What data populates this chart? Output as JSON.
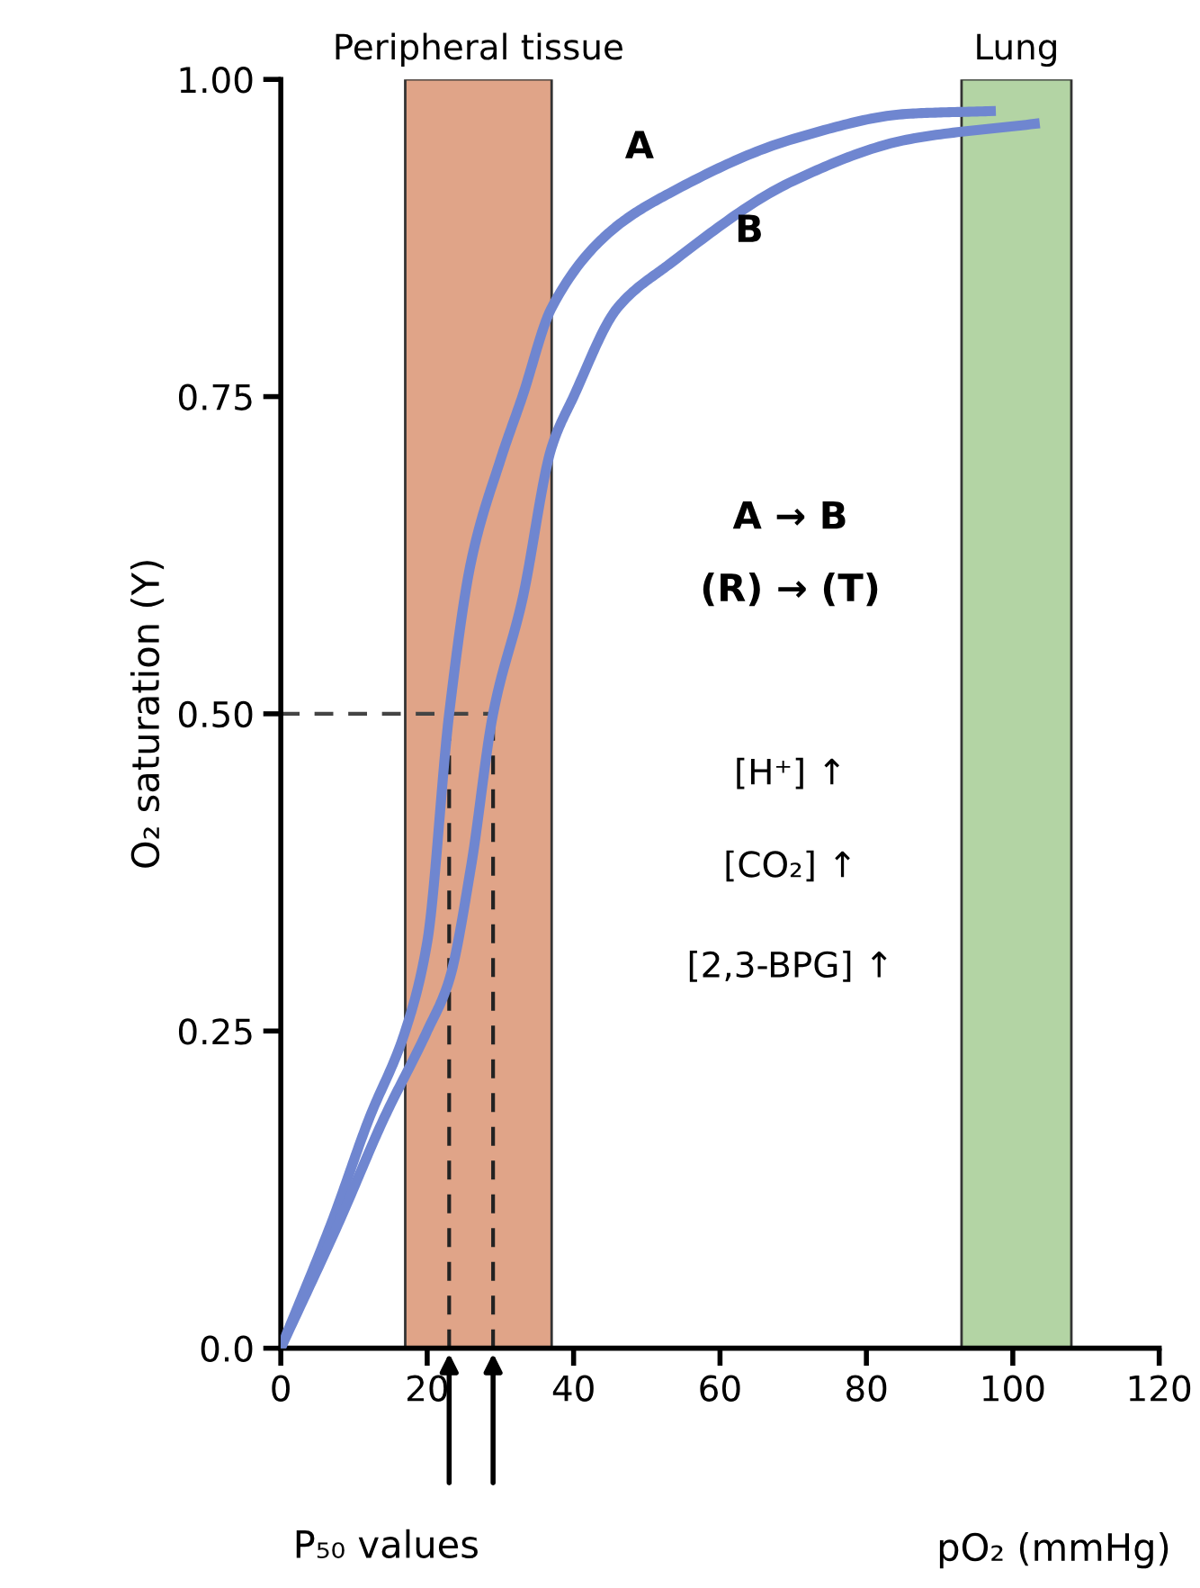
{
  "chart_data": {
    "type": "line",
    "xlabel": "pO₂ (mmHg)",
    "ylabel": "O₂ saturation (Y)",
    "xlim": [
      0,
      120
    ],
    "xticks": [
      0,
      20,
      40,
      60,
      80,
      100,
      120
    ],
    "ylim": [
      0,
      1
    ],
    "yticks": [
      {
        "value": 0,
        "label": "0.0"
      },
      0.25,
      {
        "value": 0.5,
        "label": "0.50"
      },
      0.75,
      {
        "value": 1,
        "label": "1.00"
      }
    ],
    "grid": false,
    "legend": false,
    "marker": "none",
    "line_style": "solid",
    "series": [
      {
        "name": "A",
        "color": "#6f86d0",
        "x": [
          0,
          7,
          12,
          17,
          20,
          23,
          26,
          30,
          33,
          37,
          45,
          53,
          70,
          86,
          97
        ],
        "values": [
          0,
          0.1,
          0.18,
          0.25,
          0.32,
          0.5,
          0.62,
          0.7,
          0.75,
          0.82,
          0.88,
          0.91,
          0.953,
          0.973,
          0.975
        ]
      },
      {
        "name": "B",
        "color": "#6f86d0",
        "x": [
          0,
          8,
          14,
          20,
          23,
          26,
          29,
          33,
          37,
          40,
          46,
          53,
          70,
          86,
          103
        ],
        "values": [
          0,
          0.1,
          0.18,
          0.25,
          0.29,
          0.38,
          0.5,
          0.59,
          0.71,
          0.75,
          0.82,
          0.854,
          0.92,
          0.953,
          0.965
        ]
      }
    ],
    "bands": [
      {
        "axis": "x",
        "from": 17,
        "to": 37,
        "label": "Peripheral tissue",
        "color": "#e0a488"
      },
      {
        "axis": "x",
        "from": 93,
        "to": 108,
        "label": "Lung",
        "color": "#b3d4a4"
      }
    ],
    "ref_lines": [
      {
        "axis": "y",
        "value": 0.5,
        "line_style": "dashed"
      },
      {
        "axis": "x",
        "value": 23,
        "line_style": "dashed"
      },
      {
        "axis": "x",
        "value": 29,
        "line_style": "dashed"
      }
    ],
    "annotations": [
      "A → B",
      "(R) → (T)",
      "[H⁺] ↑",
      "[CO₂] ↑",
      "[2,3-BPG] ↑",
      "P₅₀ values"
    ]
  }
}
